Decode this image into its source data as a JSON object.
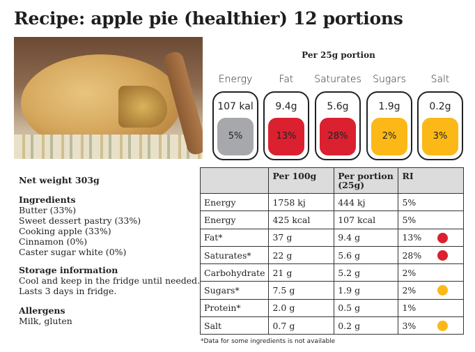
{
  "title": "Recipe: apple pie (healthier) 12 portions",
  "portion_heading": "Per 25g portion",
  "colors": {
    "grey": "#a7a8ac",
    "red": "#db2030",
    "amber": "#fbb817"
  },
  "guides": [
    {
      "label": "Energy",
      "value": "107 kal",
      "pct": "5%",
      "color": "grey"
    },
    {
      "label": "Fat",
      "value": "9.4g",
      "pct": "13%",
      "color": "red"
    },
    {
      "label": "Saturates",
      "value": "5.6g",
      "pct": "28%",
      "color": "red"
    },
    {
      "label": "Sugars",
      "value": "1.9g",
      "pct": "2%",
      "color": "amber"
    },
    {
      "label": "Salt",
      "value": "0.2g",
      "pct": "3%",
      "color": "amber"
    }
  ],
  "net_weight": "Net weight 303g",
  "ingredients": {
    "heading": "Ingredients",
    "items": [
      "Butter (33%)",
      "Sweet dessert pastry (33%)",
      "Cooking apple (33%)",
      "Cinnamon (0%)",
      "Caster sugar white (0%)"
    ]
  },
  "storage": {
    "heading": "Storage information",
    "lines": [
      "Cool and keep in the fridge until needed.",
      "Lasts 3 days in fridge."
    ]
  },
  "allergens": {
    "heading": "Allergens",
    "text": "Milk, gluten"
  },
  "table": {
    "headers": [
      "",
      "Per 100g",
      "Per portion (25g)",
      "RI"
    ],
    "rows": [
      {
        "name": "Energy",
        "per100": "1758 kj",
        "portion": "444 kj",
        "ri": "5%",
        "dot": ""
      },
      {
        "name": "Energy",
        "per100": "425 kcal",
        "portion": "107 kcal",
        "ri": "5%",
        "dot": ""
      },
      {
        "name": "Fat*",
        "per100": "37 g",
        "portion": "9.4 g",
        "ri": "13%",
        "dot": "red"
      },
      {
        "name": "Saturates*",
        "per100": "22 g",
        "portion": "5.6 g",
        "ri": "28%",
        "dot": "red"
      },
      {
        "name": "Carbohydrate",
        "per100": "21 g",
        "portion": "5.2 g",
        "ri": "2%",
        "dot": ""
      },
      {
        "name": "Sugars*",
        "per100": "7.5 g",
        "portion": "1.9 g",
        "ri": "2%",
        "dot": "amber"
      },
      {
        "name": "Protein*",
        "per100": "2.0 g",
        "portion": "0.5 g",
        "ri": "1%",
        "dot": ""
      },
      {
        "name": "Salt",
        "per100": "0.7 g",
        "portion": "0.2 g",
        "ri": "3%",
        "dot": "amber"
      }
    ]
  },
  "footnote": "*Data for some ingredients is not available"
}
